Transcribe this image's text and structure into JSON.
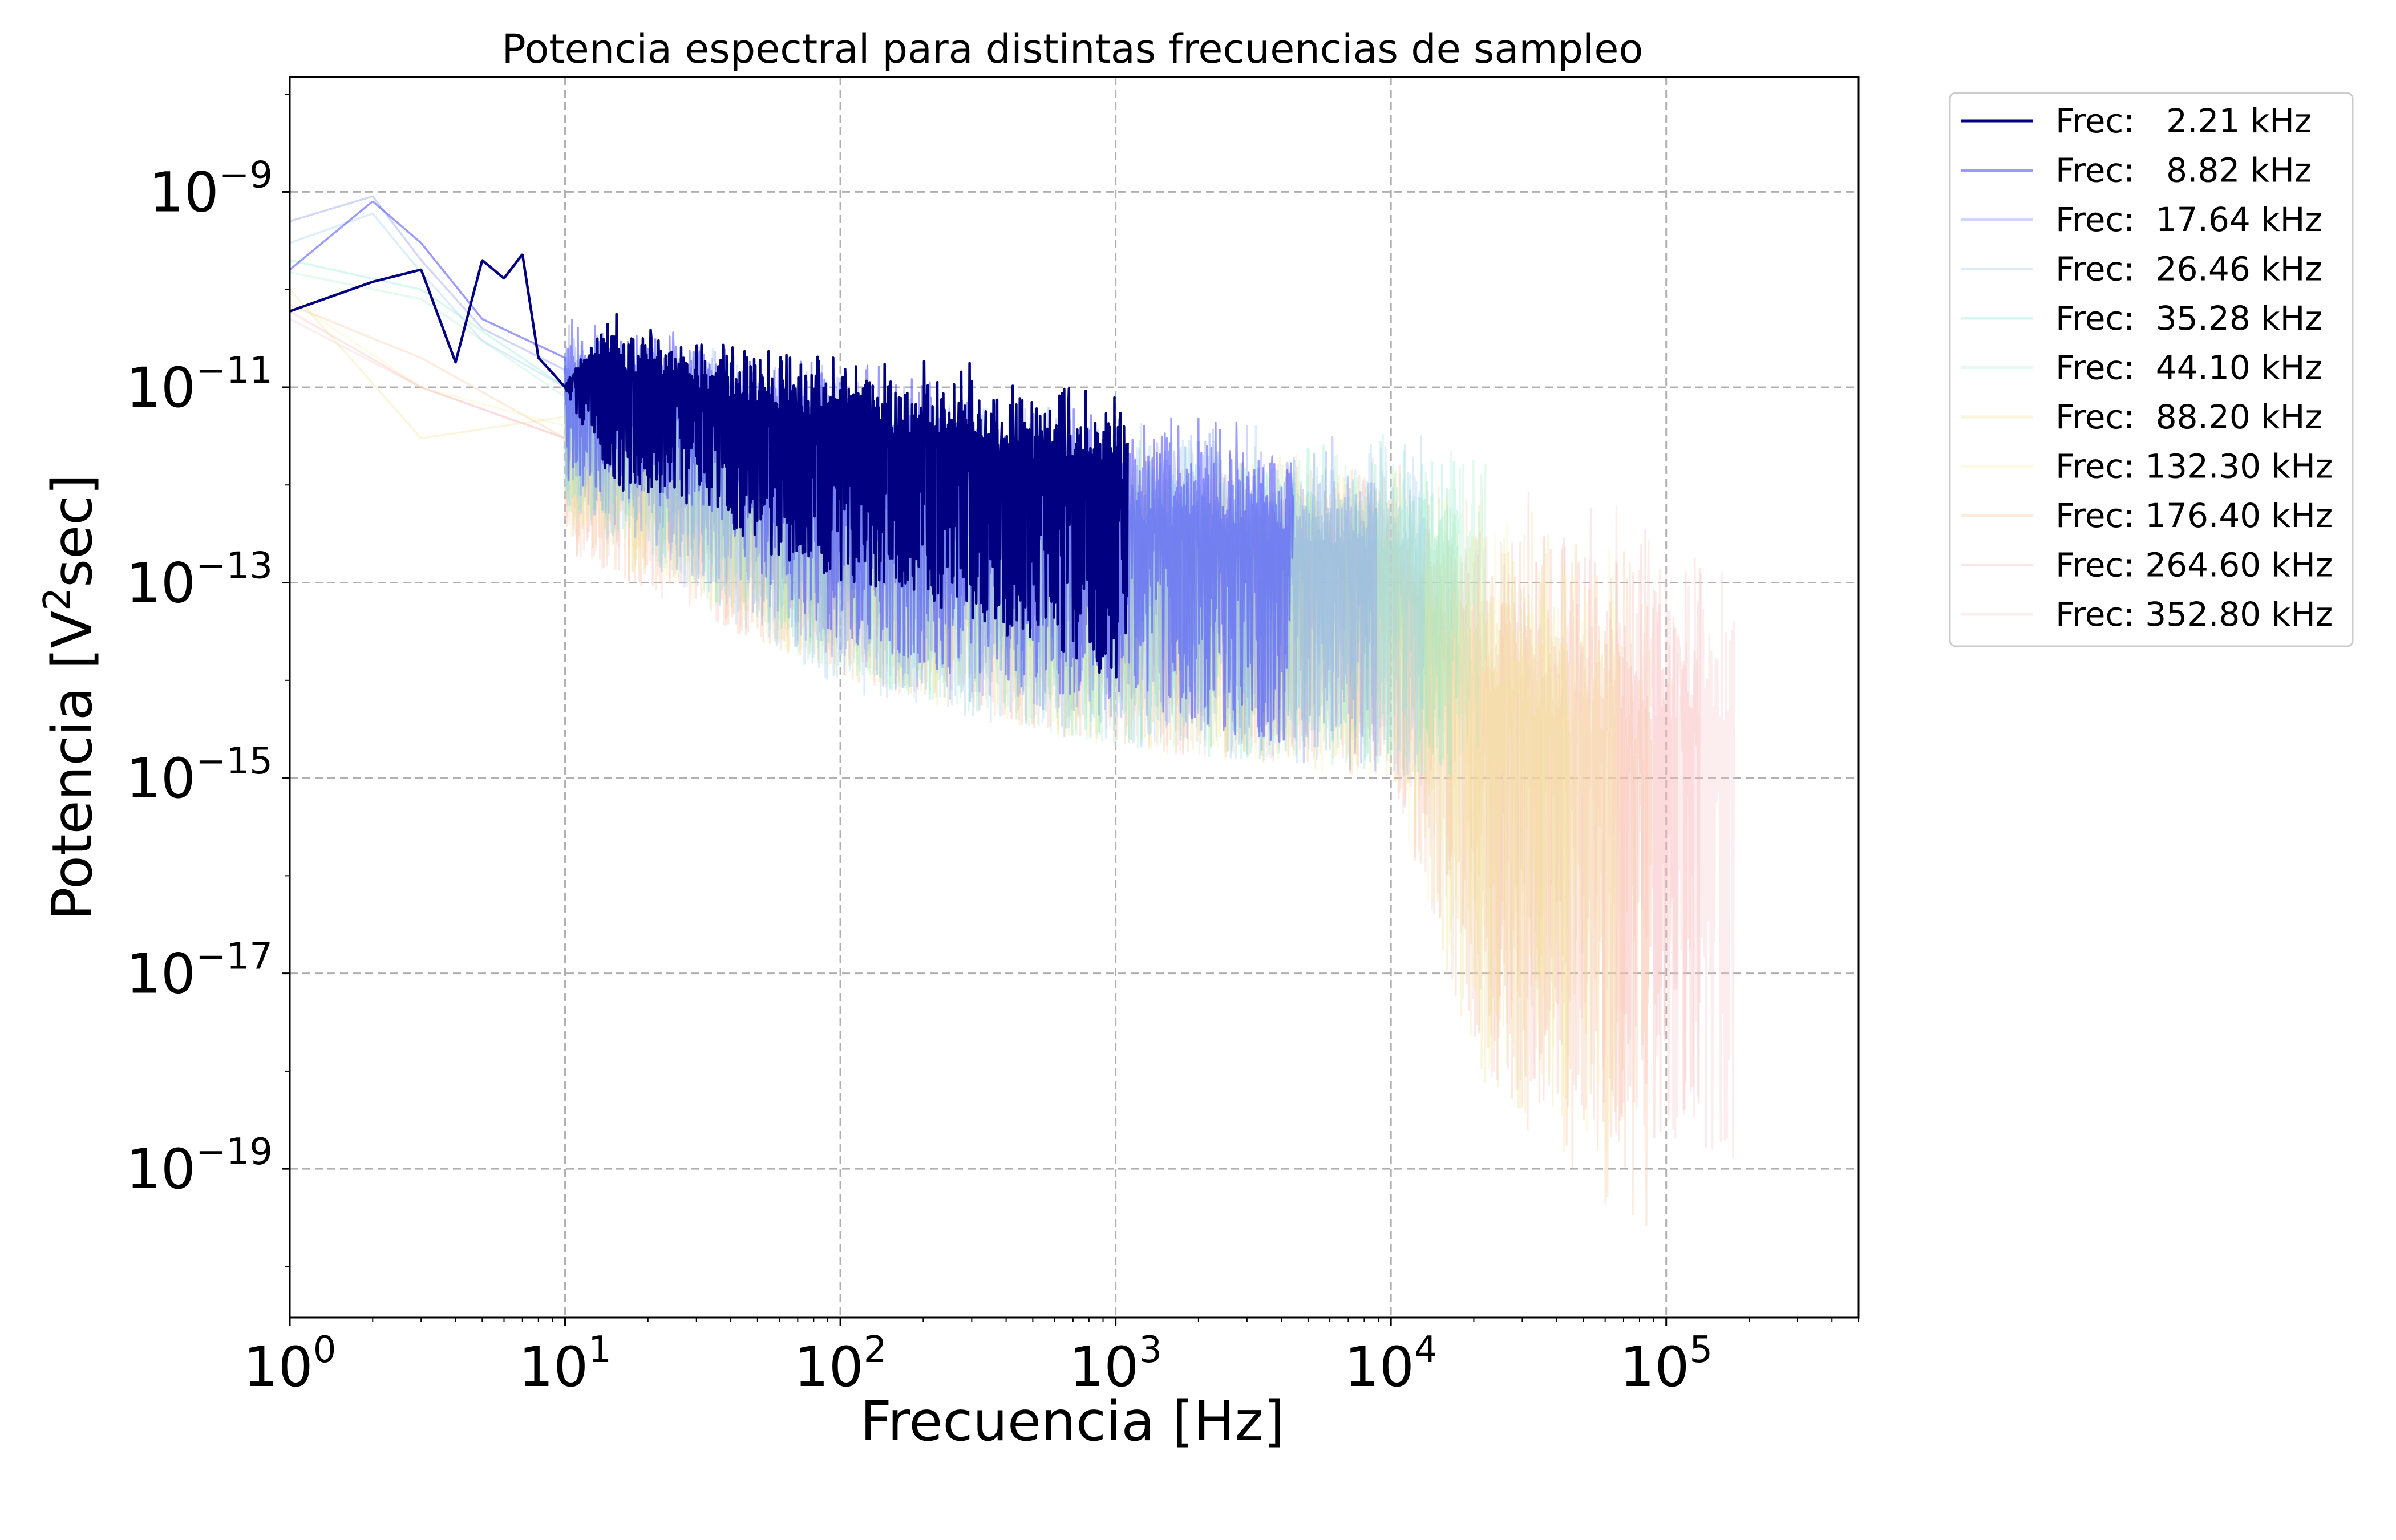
{
  "chart_data": {
    "type": "line",
    "title": "Potencia espectral para distintas frecuencias de sampleo",
    "xlabel": "Frecuencia [Hz]",
    "ylabel_parts": {
      "before": "Potencia [V",
      "sup": "2",
      "after": "sec]"
    },
    "x_scale": "log",
    "y_scale": "log",
    "xlim": [
      1,
      500000
    ],
    "ylim": [
      3e-21,
      1.5e-08
    ],
    "x_ticks": [
      {
        "value": 1,
        "base": "10",
        "exp": "0"
      },
      {
        "value": 10,
        "base": "10",
        "exp": "1"
      },
      {
        "value": 100,
        "base": "10",
        "exp": "2"
      },
      {
        "value": 1000,
        "base": "10",
        "exp": "3"
      },
      {
        "value": 10000,
        "base": "10",
        "exp": "4"
      },
      {
        "value": 100000,
        "base": "10",
        "exp": "5"
      }
    ],
    "y_ticks": [
      {
        "value": 1e-09,
        "base": "10",
        "exp": "−9"
      },
      {
        "value": 1e-11,
        "base": "10",
        "exp": "−11"
      },
      {
        "value": 1e-13,
        "base": "10",
        "exp": "−13"
      },
      {
        "value": 1e-15,
        "base": "10",
        "exp": "−15"
      },
      {
        "value": 1e-17,
        "base": "10",
        "exp": "−17"
      },
      {
        "value": 1e-19,
        "base": "10",
        "exp": "−19"
      }
    ],
    "grid": true,
    "legend_position": "outside-top-right",
    "series": [
      {
        "name": "Frec:   2.21 kHz",
        "color": "#000080",
        "alpha": 1.0,
        "fmax": 1105,
        "x": [
          1,
          2,
          3,
          4,
          5,
          6,
          7,
          8,
          9,
          10,
          12,
          15,
          17,
          20,
          30,
          50,
          100,
          300,
          1000,
          1105
        ],
        "y": [
          6e-11,
          1.2e-10,
          1.6e-10,
          1.8e-11,
          2e-10,
          1.3e-10,
          2.3e-10,
          2e-11,
          1.4e-11,
          1e-11,
          3.5e-11,
          6e-11,
          7e-13,
          2e-11,
          1e-11,
          5e-12,
          2.5e-12,
          1.2e-12,
          1.3e-12,
          1.2e-12
        ],
        "y_low": [
          6e-11,
          1.2e-10,
          1.6e-10,
          1.8e-11,
          2e-10,
          1.3e-10,
          2.3e-10,
          2e-11,
          1.4e-11,
          1e-11,
          3e-12,
          1e-12,
          7e-13,
          8e-13,
          6e-13,
          2e-13,
          1e-13,
          4e-14,
          1e-14,
          1e-14
        ],
        "y_high": [
          6e-11,
          1.2e-10,
          1.6e-10,
          1.8e-11,
          2e-10,
          1.3e-10,
          2.3e-10,
          2e-11,
          1.4e-11,
          1e-11,
          4e-11,
          7e-11,
          4e-11,
          6e-11,
          4e-11,
          3e-11,
          2.5e-11,
          1.8e-11,
          1.5e-11,
          1.2e-11
        ]
      },
      {
        "name": "Frec:   8.82 kHz",
        "color": "#4a4aff",
        "alpha": 0.55,
        "fmax": 4410,
        "x": [
          1,
          2,
          3,
          5,
          10,
          30,
          100,
          1000,
          4410
        ],
        "y": [
          1.6e-10,
          8e-10,
          3e-10,
          5e-11,
          2e-11,
          1e-11,
          3e-12,
          1e-12,
          5e-13
        ],
        "y_low": [
          1.6e-10,
          8e-10,
          3e-10,
          3e-11,
          1e-12,
          5e-13,
          2e-14,
          5e-15,
          2e-15
        ],
        "y_high": [
          1.6e-10,
          8e-10,
          3e-10,
          8e-11,
          6e-11,
          4e-11,
          2e-11,
          8e-12,
          5e-12
        ]
      },
      {
        "name": "Frec:  17.64 kHz",
        "color": "#8a9bf0",
        "alpha": 0.4,
        "fmax": 8820,
        "x": [
          1,
          2,
          3,
          5,
          10,
          100,
          1000,
          8820
        ],
        "y": [
          5e-10,
          9e-10,
          2e-10,
          4e-11,
          1.5e-11,
          3e-12,
          8e-13,
          3e-13
        ],
        "y_low": [
          5e-10,
          9e-10,
          2e-10,
          2e-11,
          8e-13,
          1e-14,
          3e-15,
          1e-15
        ],
        "y_high": [
          5e-10,
          9e-10,
          2e-10,
          8e-11,
          6e-11,
          2e-11,
          6e-12,
          4e-12
        ]
      },
      {
        "name": "Frec:  26.46 kHz",
        "color": "#9ecbf5",
        "alpha": 0.35,
        "fmax": 13230,
        "x": [
          1,
          2,
          3,
          5,
          10,
          100,
          1000,
          13230
        ],
        "y": [
          3e-10,
          6e-10,
          1.5e-10,
          3e-11,
          1e-11,
          2e-12,
          6e-13,
          2.5e-13
        ],
        "y_low": [
          3e-10,
          6e-10,
          1.5e-10,
          1e-11,
          5e-13,
          8e-15,
          2e-15,
          1e-15
        ],
        "y_high": [
          3e-10,
          6e-10,
          1.5e-10,
          6e-11,
          5e-11,
          1.8e-11,
          5e-12,
          4e-12
        ]
      },
      {
        "name": "Frec:  35.28 kHz",
        "color": "#7fe8c8",
        "alpha": 0.32,
        "fmax": 17640,
        "x": [
          1,
          3,
          10,
          100,
          1000,
          17640
        ],
        "y": [
          2e-10,
          1e-10,
          1e-11,
          2e-12,
          5e-13,
          2e-13
        ],
        "y_low": [
          2e-10,
          5e-11,
          6e-13,
          1e-14,
          2e-15,
          1e-15
        ],
        "y_high": [
          2e-10,
          1.5e-10,
          4e-11,
          1.5e-11,
          5e-12,
          3.5e-12
        ]
      },
      {
        "name": "Frec:  44.10 kHz",
        "color": "#a8f0c8",
        "alpha": 0.3,
        "fmax": 22050,
        "x": [
          1,
          3,
          10,
          100,
          1000,
          22050
        ],
        "y": [
          1.5e-10,
          8e-11,
          8e-12,
          2e-12,
          5e-13,
          2e-13
        ],
        "y_low": [
          1.5e-10,
          4e-11,
          5e-13,
          1e-14,
          2e-15,
          1e-15
        ],
        "y_high": [
          1.5e-10,
          1.2e-10,
          4e-11,
          1.5e-11,
          5e-12,
          3e-12
        ]
      },
      {
        "name": "Frec:  88.20 kHz",
        "color": "#f0e090",
        "alpha": 0.3,
        "fmax": 44100,
        "x": [
          1,
          3,
          10,
          100,
          1000,
          10000,
          20000,
          44100
        ],
        "y": [
          1e-10,
          3e-12,
          5e-12,
          1.5e-12,
          4e-13,
          2e-13,
          1e-14,
          1e-15
        ],
        "y_low": [
          1e-10,
          3e-12,
          4e-13,
          1e-14,
          2e-15,
          1e-15,
          1e-18,
          1e-19
        ],
        "y_high": [
          1e-10,
          3e-12,
          3e-11,
          1.2e-11,
          4e-12,
          2e-12,
          1e-12,
          7e-13
        ]
      },
      {
        "name": "Frec: 132.30 kHz",
        "color": "#f5f0a0",
        "alpha": 0.28,
        "fmax": 66150,
        "x": [
          1,
          3,
          10,
          100,
          1000,
          10000,
          20000,
          66150
        ],
        "y": [
          8e-11,
          1e-11,
          4e-12,
          1.2e-12,
          3e-13,
          1.5e-13,
          1e-14,
          1e-15
        ],
        "y_low": [
          8e-11,
          5e-12,
          3e-13,
          1e-14,
          2e-15,
          1e-15,
          1e-18,
          1e-19
        ],
        "y_high": [
          8e-11,
          2e-11,
          2.5e-11,
          1e-11,
          3.5e-12,
          2e-12,
          1e-12,
          7e-13
        ]
      },
      {
        "name": "Frec: 176.40 kHz",
        "color": "#f8c8a0",
        "alpha": 0.35,
        "fmax": 88200,
        "x": [
          1,
          3,
          10,
          100,
          1000,
          10000,
          20000,
          88200
        ],
        "y": [
          7e-11,
          2e-11,
          3e-12,
          1e-12,
          3e-13,
          1.5e-13,
          1e-14,
          5e-16
        ],
        "y_low": [
          7e-11,
          8e-12,
          2e-13,
          1e-14,
          2e-15,
          1e-15,
          1e-18,
          1e-20
        ],
        "y_high": [
          7e-11,
          3e-11,
          2e-11,
          1e-11,
          3e-12,
          2e-12,
          1e-12,
          7e-13
        ]
      },
      {
        "name": "Frec: 264.60 kHz",
        "color": "#f8b0b0",
        "alpha": 0.3,
        "fmax": 132300,
        "x": [
          1,
          3,
          10,
          100,
          1000,
          10000,
          20000,
          132300
        ],
        "y": [
          6e-11,
          1e-11,
          3e-12,
          1e-12,
          3e-13,
          1.5e-13,
          1e-14,
          1e-15
        ],
        "y_low": [
          6e-11,
          5e-12,
          2e-13,
          1e-14,
          2e-15,
          1e-15,
          1e-18,
          1e-19
        ],
        "y_high": [
          6e-11,
          2e-11,
          2e-11,
          1e-11,
          3e-12,
          2e-12,
          1e-12,
          7e-13
        ]
      },
      {
        "name": "Frec: 352.80 kHz",
        "color": "#f5c8c8",
        "alpha": 0.3,
        "fmax": 176400,
        "x": [
          1,
          3,
          10,
          100,
          1000,
          10000,
          20000,
          176400
        ],
        "y": [
          5e-11,
          1e-11,
          3e-12,
          1e-12,
          3e-13,
          1.5e-13,
          1e-14,
          1e-15
        ],
        "y_low": [
          5e-11,
          5e-12,
          2e-13,
          1e-14,
          2e-15,
          1e-15,
          1e-18,
          1e-19
        ],
        "y_high": [
          5e-11,
          2e-11,
          2e-11,
          1e-11,
          3e-12,
          2e-12,
          1e-12,
          7e-13
        ]
      }
    ]
  }
}
